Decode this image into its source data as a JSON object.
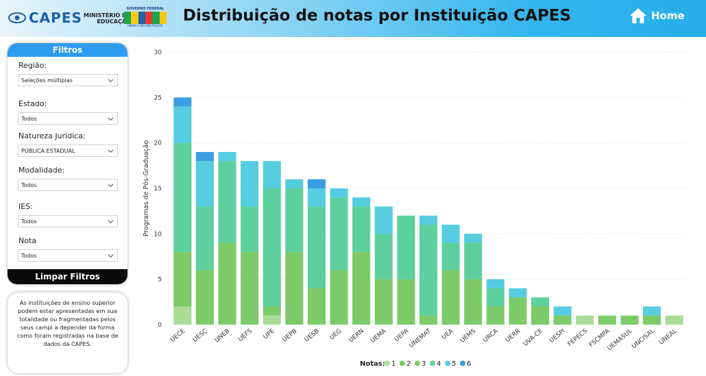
{
  "header": {
    "capes": "CAPES",
    "mec_line1": "MINISTÉRIO DA",
    "mec_line2": "EDUCAÇÃO",
    "gov_top": "GOVERNO FEDERAL",
    "gov_bottom": "UNIÃO E RECONSTRUÇÃO",
    "title": "Distribuição de notas por Instituição CAPES",
    "home_label": "Home"
  },
  "filters": {
    "title": "Filtros",
    "items": [
      {
        "label": "Região:",
        "value": "Seleções múltiplas"
      },
      {
        "label": "Estado:",
        "value": "Todos"
      },
      {
        "label": "Natureza Jurídica:",
        "value": "PÚBLICA ESTADUAL"
      },
      {
        "label": "Modalidade:",
        "value": "Todos"
      },
      {
        "label": "IES:",
        "value": "Todos"
      },
      {
        "label": "Nota",
        "value": "Todos"
      }
    ],
    "clear_label": "Limpar Filtros"
  },
  "note": "As instituições de ensino superior podem estar apresentadas em sua totalidade ou fragmentadas pelos seus campi a depender da forma como foram registradas na base de dados da CAPES.",
  "colors": {
    "header_blue": "#26aee9",
    "filter_blue": "#2d9cef",
    "nota1": "#a9dc96",
    "nota2": "#7ccb68",
    "nota3": "#7ccb68",
    "nota4": "#5dd09e",
    "nota5": "#56cde0",
    "nota6": "#3a9ee0"
  },
  "chart_data": {
    "type": "bar",
    "stacked": true,
    "ylabel": "Programas de Pós-Graduação",
    "xlabel": "",
    "ylim": [
      0,
      30
    ],
    "yticks": [
      0,
      5,
      10,
      15,
      20,
      25,
      30
    ],
    "grid": true,
    "legend_title": "Notas:",
    "legend_position": "bottom-center",
    "categories": [
      "UECE",
      "UESC",
      "UNEB",
      "UEFS",
      "UPE",
      "UEPB",
      "UESB",
      "UEG",
      "UERN",
      "UEMA",
      "UEPA",
      "UNEMAT",
      "UEA",
      "UEMS",
      "URCA",
      "UERR",
      "UVA-CE",
      "UESPI",
      "FEPECS",
      "FSCMPA",
      "UEMASUL",
      "UNCISAL",
      "UNEAL"
    ],
    "series": [
      {
        "name": "1",
        "color": "#a9dc96",
        "values": [
          2,
          0,
          0,
          0,
          1,
          0,
          0,
          0,
          0,
          0,
          0,
          0,
          0,
          0,
          0,
          0,
          0,
          0,
          1,
          0,
          0,
          0,
          1
        ]
      },
      {
        "name": "2",
        "color": "#7ccb68",
        "values": [
          6,
          6,
          9,
          8,
          1,
          8,
          4,
          6,
          8,
          5,
          5,
          1,
          6,
          5,
          2,
          3,
          2,
          1,
          0,
          1,
          1,
          1,
          0
        ]
      },
      {
        "name": "3",
        "color": "#7ccb68",
        "values": [
          0,
          0,
          0,
          0,
          0,
          0,
          0,
          0,
          0,
          0,
          0,
          0,
          0,
          0,
          0,
          0,
          0,
          0,
          0,
          0,
          0,
          0,
          0
        ]
      },
      {
        "name": "4",
        "color": "#5dd09e",
        "values": [
          12,
          7,
          9,
          5,
          13,
          7,
          9,
          8,
          5,
          5,
          7,
          10,
          3,
          4,
          2,
          0,
          1,
          0,
          0,
          0,
          0,
          0,
          0
        ]
      },
      {
        "name": "5",
        "color": "#56cde0",
        "values": [
          4,
          5,
          1,
          5,
          3,
          1,
          2,
          1,
          1,
          3,
          0,
          1,
          2,
          1,
          1,
          1,
          0,
          1,
          0,
          0,
          0,
          1,
          0
        ]
      },
      {
        "name": "6",
        "color": "#3a9ee0",
        "values": [
          1,
          1,
          0,
          0,
          0,
          0,
          1,
          0,
          0,
          0,
          0,
          0,
          0,
          0,
          0,
          0,
          0,
          0,
          0,
          0,
          0,
          0,
          0
        ]
      }
    ]
  }
}
